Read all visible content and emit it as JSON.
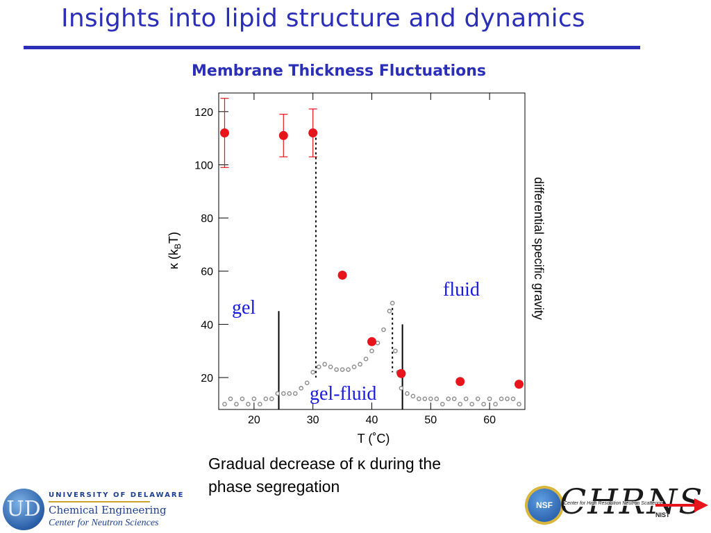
{
  "slide": {
    "title": "Insights into lipid structure and dynamics",
    "caption_line1": "Gradual decrease of κ during the",
    "caption_line2": "phase segregation",
    "accent_color": "#2b2fb8"
  },
  "logos": {
    "ud_seal": "UD",
    "ud_university": "UNIVERSITY OF DELAWARE",
    "ud_department": "Chemical Engineering",
    "ud_center": "Center for Neutron Sciences",
    "nsf": "NSF",
    "chrns": "CHRNS",
    "chrns_sub": "Center for High Resolution Neutron Scattering",
    "nist": "NIST"
  },
  "chart_data": {
    "type": "scatter",
    "title": "Membrane Thickness Fluctuations",
    "xlabel": "T (˚C)",
    "ylabel": "κ (kBT)",
    "ylabel_right": "differential specific gravity",
    "xlim": [
      14,
      66
    ],
    "ylim": [
      8,
      127
    ],
    "x_ticks": [
      20,
      30,
      40,
      50,
      60
    ],
    "y_ticks": [
      20,
      40,
      60,
      80,
      100,
      120
    ],
    "series": [
      {
        "kind": "kappa",
        "color": "#e8141b",
        "points": [
          {
            "x": 15,
            "y": 112,
            "err": 13
          },
          {
            "x": 25,
            "y": 111,
            "err": 8
          },
          {
            "x": 30,
            "y": 112,
            "err": 9
          },
          {
            "x": 35,
            "y": 58.5,
            "err": 0
          },
          {
            "x": 40,
            "y": 33.5,
            "err": 0
          },
          {
            "x": 45,
            "y": 21.5,
            "err": 0
          },
          {
            "x": 55,
            "y": 18.5,
            "err": 0
          },
          {
            "x": 65,
            "y": 17.5,
            "err": 0
          }
        ]
      },
      {
        "kind": "differential specific gravity",
        "color": "#8a8a8a",
        "points": [
          [
            15,
            10
          ],
          [
            16,
            12
          ],
          [
            17,
            10
          ],
          [
            18,
            12
          ],
          [
            19,
            10
          ],
          [
            20,
            12
          ],
          [
            21,
            10
          ],
          [
            22,
            12
          ],
          [
            23,
            12
          ],
          [
            24,
            14
          ],
          [
            25,
            14
          ],
          [
            26,
            14
          ],
          [
            27,
            14
          ],
          [
            28,
            16
          ],
          [
            29,
            18
          ],
          [
            30,
            22
          ],
          [
            31,
            24
          ],
          [
            32,
            25
          ],
          [
            33,
            24
          ],
          [
            34,
            23
          ],
          [
            35,
            23
          ],
          [
            36,
            23
          ],
          [
            37,
            24
          ],
          [
            38,
            25
          ],
          [
            39,
            27
          ],
          [
            40,
            30
          ],
          [
            41,
            33
          ],
          [
            42,
            38
          ],
          [
            43,
            45
          ],
          [
            43.5,
            48
          ],
          [
            44,
            30
          ],
          [
            44.5,
            22
          ],
          [
            45,
            16
          ],
          [
            46,
            14
          ],
          [
            47,
            13
          ],
          [
            48,
            12
          ],
          [
            49,
            12
          ],
          [
            50,
            12
          ],
          [
            51,
            12
          ],
          [
            52,
            10
          ],
          [
            53,
            12
          ],
          [
            54,
            12
          ],
          [
            55,
            10
          ],
          [
            56,
            12
          ],
          [
            57,
            10
          ],
          [
            58,
            12
          ],
          [
            59,
            10
          ],
          [
            60,
            12
          ],
          [
            61,
            10
          ],
          [
            62,
            12
          ],
          [
            63,
            12
          ],
          [
            64,
            12
          ],
          [
            65,
            10
          ]
        ]
      }
    ],
    "annotations": [
      {
        "text": "gel",
        "color": "#1a1adf"
      },
      {
        "text": "fluid",
        "color": "#1a1adf"
      },
      {
        "text": "gel-fluid",
        "color": "#1a1adf"
      }
    ],
    "phase_boundaries_T": [
      24.2,
      45.2
    ],
    "transition_markers_T": [
      30.5,
      43.5
    ],
    "grid": false
  }
}
